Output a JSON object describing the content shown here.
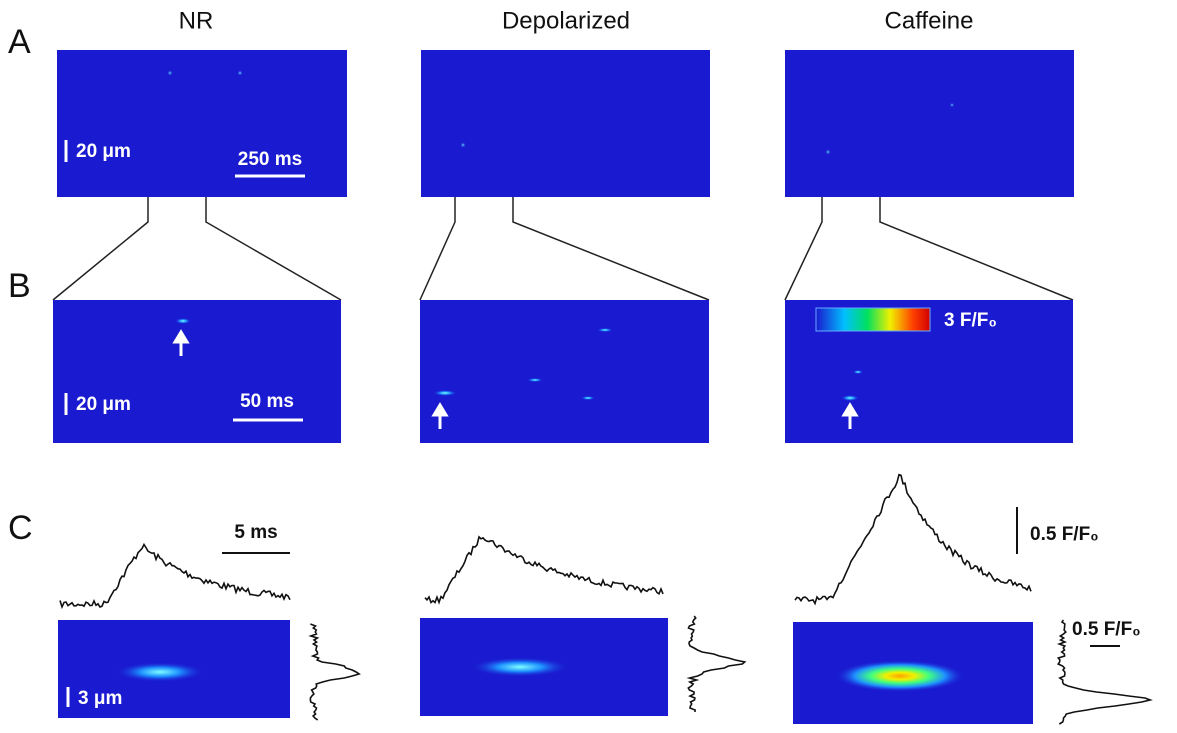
{
  "columns": [
    "NR",
    "Depolarized",
    "Caffeine"
  ],
  "panels": [
    "A",
    "B",
    "C"
  ],
  "labels": {
    "a_space": "20 μm",
    "a_time": "250 ms",
    "b_space": "20 μm",
    "b_time": "50 ms",
    "colorbar": "3 F/F₀",
    "c_time": "5 ms",
    "c_amp": "0.5 F/F₀",
    "c_space": "3 μm",
    "c_profile_amp": "0.5 F/F₀"
  }
}
